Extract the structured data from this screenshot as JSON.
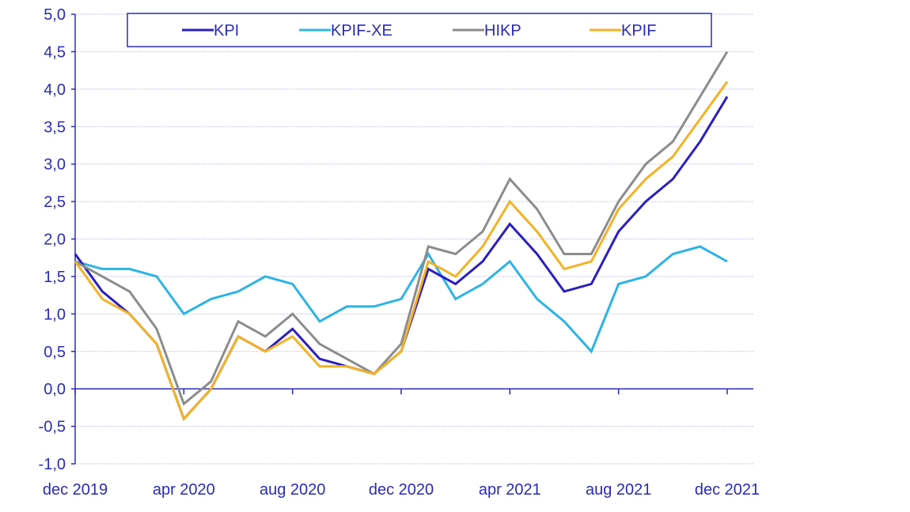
{
  "chart_data": {
    "type": "line",
    "title": "",
    "xlabel": "",
    "ylabel": "",
    "ylim": [
      -1.0,
      5.0
    ],
    "y_ticks": [
      "5,0",
      "4,5",
      "4,0",
      "3,5",
      "3,0",
      "2,5",
      "2,0",
      "1,5",
      "1,0",
      "0,5",
      "0,0",
      "-0,5",
      "-1,0"
    ],
    "y_tick_values": [
      5.0,
      4.5,
      4.0,
      3.5,
      3.0,
      2.5,
      2.0,
      1.5,
      1.0,
      0.5,
      0.0,
      -0.5,
      -1.0
    ],
    "x": [
      "dec 2019",
      "jan 2020",
      "feb 2020",
      "mar 2020",
      "apr 2020",
      "maj 2020",
      "jun 2020",
      "jul 2020",
      "aug 2020",
      "sep 2020",
      "okt 2020",
      "nov 2020",
      "dec 2020",
      "jan 2021",
      "feb 2021",
      "mar 2021",
      "apr 2021",
      "maj 2021",
      "jun 2021",
      "jul 2021",
      "aug 2021",
      "sep 2021",
      "okt 2021",
      "nov 2021",
      "dec 2021"
    ],
    "x_tick_labels": [
      {
        "index": 0,
        "label": "dec 2019"
      },
      {
        "index": 4,
        "label": "apr 2020"
      },
      {
        "index": 8,
        "label": "aug 2020"
      },
      {
        "index": 12,
        "label": "dec 2020"
      },
      {
        "index": 16,
        "label": "apr 2021"
      },
      {
        "index": 20,
        "label": "aug 2021"
      },
      {
        "index": 24,
        "label": "dec 2021"
      }
    ],
    "grid": true,
    "legend_position": "top",
    "series": [
      {
        "name": "KPI",
        "color": "#2b1ec0",
        "values": [
          1.8,
          1.3,
          1.0,
          0.6,
          -0.4,
          0.0,
          0.7,
          0.5,
          0.8,
          0.4,
          0.3,
          0.2,
          0.5,
          1.6,
          1.4,
          1.7,
          2.2,
          1.8,
          1.3,
          1.4,
          2.1,
          2.5,
          2.8,
          3.3,
          3.9
        ]
      },
      {
        "name": "KPIF-XE",
        "color": "#2cb4e6",
        "values": [
          1.7,
          1.6,
          1.6,
          1.5,
          1.0,
          1.2,
          1.3,
          1.5,
          1.4,
          0.9,
          1.1,
          1.1,
          1.2,
          1.8,
          1.2,
          1.4,
          1.7,
          1.2,
          0.9,
          0.5,
          1.4,
          1.5,
          1.8,
          1.9,
          1.7
        ]
      },
      {
        "name": "HIKP",
        "color": "#8c8c8c",
        "values": [
          1.7,
          1.5,
          1.3,
          0.8,
          -0.2,
          0.1,
          0.9,
          0.7,
          1.0,
          0.6,
          0.4,
          0.2,
          0.6,
          1.9,
          1.8,
          2.1,
          2.8,
          2.4,
          1.8,
          1.8,
          2.5,
          3.0,
          3.3,
          3.9,
          4.5
        ]
      },
      {
        "name": "KPIF",
        "color": "#f4b223",
        "values": [
          1.7,
          1.2,
          1.0,
          0.6,
          -0.4,
          0.0,
          0.7,
          0.5,
          0.7,
          0.3,
          0.3,
          0.2,
          0.5,
          1.7,
          1.5,
          1.9,
          2.5,
          2.1,
          1.6,
          1.7,
          2.4,
          2.8,
          3.1,
          3.6,
          4.1
        ]
      }
    ],
    "colors": {
      "axis": "#2a2ab8",
      "grid": "#c9c9ee",
      "legend_border": "#2a2ab8"
    }
  }
}
